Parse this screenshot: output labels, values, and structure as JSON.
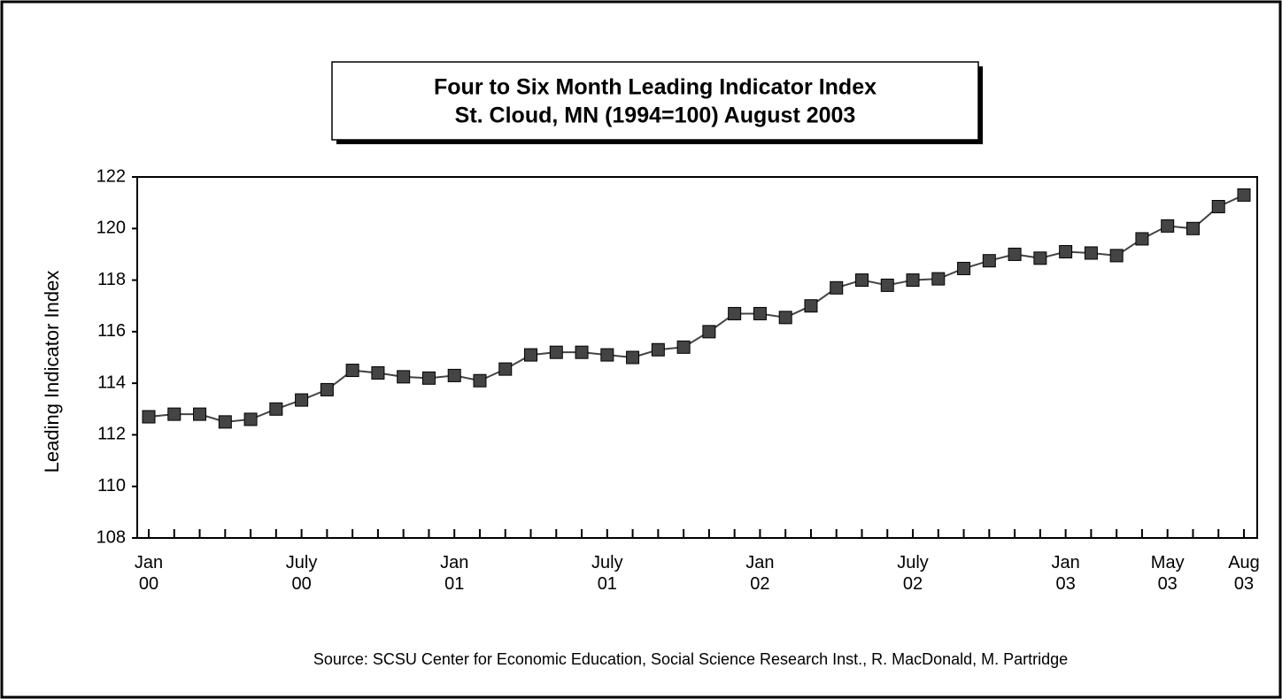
{
  "chart_data": {
    "type": "line",
    "title": "Four to Six Month Leading Indicator Index",
    "subtitle": "St. Cloud, MN (1994=100) August 2003",
    "y_label": "Leading Indicator Index",
    "source": "Source: SCSU Center for Economic Education, Social Science Research Inst., R. MacDonald, M. Partridge",
    "categories": [
      "Jan\n00",
      null,
      null,
      null,
      null,
      null,
      "July\n00",
      null,
      null,
      null,
      null,
      null,
      "Jan\n01",
      null,
      null,
      null,
      null,
      null,
      "July\n01",
      null,
      null,
      null,
      null,
      null,
      "Jan\n02",
      null,
      null,
      null,
      null,
      null,
      "July\n02",
      null,
      null,
      null,
      null,
      null,
      "Jan\n03",
      null,
      null,
      null,
      "May\n03",
      null,
      null,
      "Aug\n03"
    ],
    "series": [
      {
        "name": "Leading Indicator Index",
        "color": "#444444",
        "values": [
          112.7,
          112.8,
          112.8,
          112.5,
          112.6,
          113.0,
          113.35,
          113.75,
          114.5,
          114.4,
          114.25,
          114.2,
          114.3,
          114.1,
          114.55,
          115.1,
          115.2,
          115.2,
          115.1,
          115.0,
          115.3,
          115.4,
          116.0,
          116.7,
          116.7,
          116.55,
          117.0,
          117.7,
          118.0,
          117.8,
          118.0,
          118.05,
          118.45,
          118.75,
          119.0,
          118.85,
          119.1,
          119.05,
          118.95,
          119.6,
          120.1,
          120.0,
          120.85,
          121.3
        ]
      }
    ],
    "ylim": [
      108,
      122
    ],
    "yticks": [
      108,
      110,
      112,
      114,
      116,
      118,
      120,
      122
    ],
    "grid": false
  }
}
